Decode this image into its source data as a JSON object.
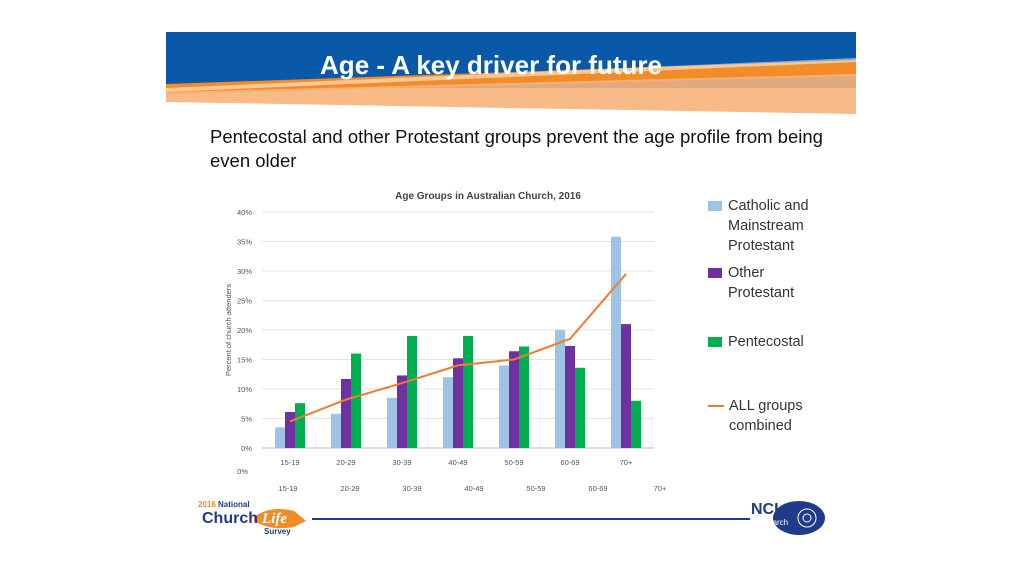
{
  "slide": {
    "title": "Age - A key driver for future",
    "subtitle": "Pentecostal and other Protestant groups prevent the age profile from being even older"
  },
  "chart_data": {
    "type": "bar",
    "title": "Age Groups in Australian Church, 2016",
    "xlabel": "",
    "ylabel": "Percent of church attenders",
    "ylim": [
      0,
      40
    ],
    "yticks": [
      "0%",
      "5%",
      "10%",
      "15%",
      "20%",
      "25%",
      "30%",
      "35%",
      "40%"
    ],
    "categories": [
      "15-19",
      "20-29",
      "30-39",
      "40-49",
      "50-59",
      "60-69",
      "70+"
    ],
    "series": [
      {
        "name": "Catholic and Mainstream Protestant",
        "kind": "bar",
        "color": "#9dc3e6",
        "values": [
          3.5,
          5.8,
          8.5,
          12.0,
          14.0,
          20.0,
          35.8
        ]
      },
      {
        "name": "Other Protestant",
        "kind": "bar",
        "color": "#7030a0",
        "values": [
          6.1,
          11.7,
          12.3,
          15.2,
          16.4,
          17.3,
          21.0
        ]
      },
      {
        "name": "Pentecostal",
        "kind": "bar",
        "color": "#00b050",
        "values": [
          7.6,
          16.0,
          19.0,
          19.0,
          17.2,
          13.6,
          8.0
        ]
      },
      {
        "name": "ALL groups combined",
        "kind": "line",
        "color": "#ed7d31",
        "values": [
          4.5,
          8.2,
          11.0,
          14.0,
          15.0,
          18.5,
          29.5
        ]
      }
    ],
    "secondary_axis": {
      "tick_label": "0%",
      "categories": [
        "15-19",
        "20-29",
        "30-39",
        "40-49",
        "50-59",
        "60-69",
        "70+"
      ]
    },
    "legend_position": "right",
    "grid": true
  },
  "legend": [
    {
      "label": "Catholic and\nMainstream\nProtestant",
      "color": "#9dc3e6",
      "kind": "bar"
    },
    {
      "label": "Other\nProtestant",
      "color": "#7030a0",
      "kind": "bar"
    },
    {
      "label": "Pentecostal",
      "color": "#00b050",
      "kind": "bar"
    },
    {
      "label": "ALL groups\ncombined",
      "color": "#ed7d31",
      "kind": "line"
    }
  ],
  "footer": {
    "survey_logo": {
      "year": "2016",
      "line1": "National",
      "line2": "Church",
      "line3": "Life",
      "line4": "Survey"
    },
    "ncls_logo": {
      "line1": "NCLS",
      "line2": "research"
    }
  }
}
